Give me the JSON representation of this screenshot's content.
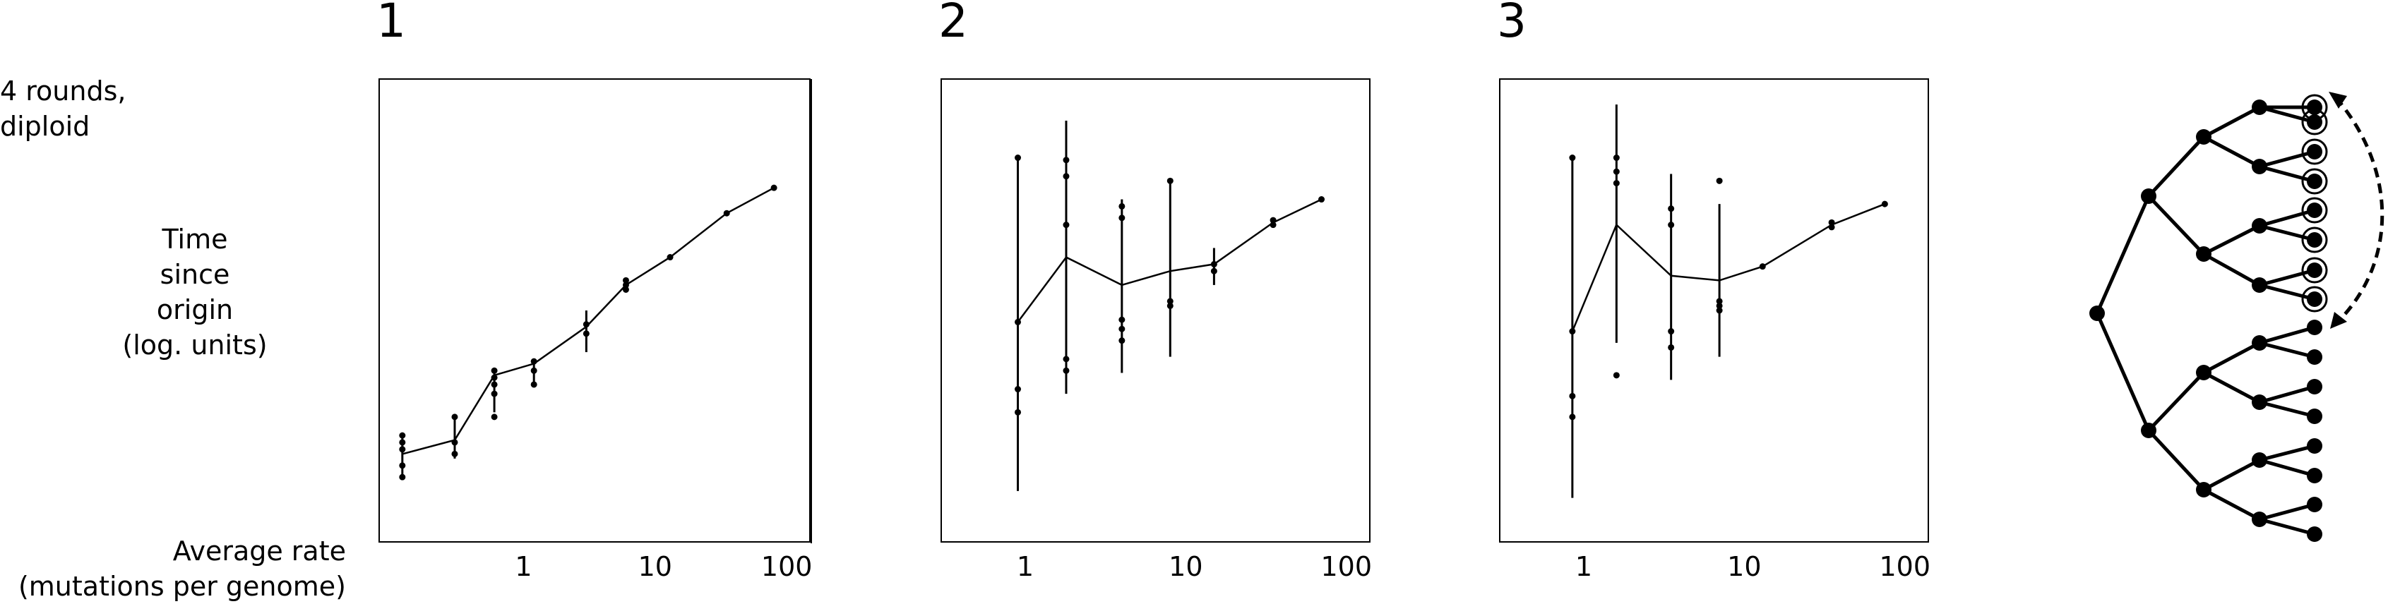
{
  "row_title": [
    "4 rounds,",
    "diploid"
  ],
  "y_axis_label": [
    "Time",
    "since",
    "origin",
    "(log. units)"
  ],
  "x_axis_label": [
    "Average rate",
    "(mutations per genome)"
  ],
  "colors": {
    "ink": "#000000",
    "background": "#ffffff"
  },
  "tree_icon": "binary-genealogy-tree-icon",
  "chart_data": [
    {
      "type": "line",
      "title": "1",
      "x_scale": "log",
      "xlim": [
        0.08,
        150
      ],
      "ylim": [
        0,
        1
      ],
      "x_ticks": [
        1,
        10,
        100
      ],
      "x_tick_labels": [
        "1",
        "10",
        "100"
      ],
      "y_ticks": [],
      "grid": false,
      "line": {
        "x": [
          0.12,
          0.3,
          0.6,
          1.2,
          3,
          6,
          13,
          35,
          80
        ],
        "y": [
          0.19,
          0.22,
          0.36,
          0.385,
          0.465,
          0.555,
          0.615,
          0.71,
          0.765
        ]
      },
      "error_bars": [
        {
          "x": 0.12,
          "low": 0.14,
          "high": 0.235
        },
        {
          "x": 0.3,
          "low": 0.18,
          "high": 0.27
        },
        {
          "x": 0.6,
          "low": 0.28,
          "high": 0.365
        },
        {
          "x": 1.2,
          "low": 0.34,
          "high": 0.395
        },
        {
          "x": 3,
          "low": 0.41,
          "high": 0.5
        },
        {
          "x": 6,
          "low": 0.54,
          "high": 0.565
        }
      ],
      "points": [
        {
          "x": 0.12,
          "y": [
            0.14,
            0.165,
            0.2,
            0.215,
            0.23
          ]
        },
        {
          "x": 0.3,
          "y": [
            0.19,
            0.215,
            0.27
          ]
        },
        {
          "x": 0.6,
          "y": [
            0.27,
            0.32,
            0.34,
            0.355,
            0.37
          ]
        },
        {
          "x": 1.2,
          "y": [
            0.34,
            0.37,
            0.39
          ]
        },
        {
          "x": 3,
          "y": [
            0.45,
            0.47
          ]
        },
        {
          "x": 6,
          "y": [
            0.545,
            0.555,
            0.565
          ]
        },
        {
          "x": 13,
          "y": [
            0.615
          ]
        },
        {
          "x": 35,
          "y": [
            0.71
          ]
        },
        {
          "x": 80,
          "y": [
            0.765
          ]
        }
      ]
    },
    {
      "type": "line",
      "title": "2",
      "x_scale": "log",
      "xlim": [
        0.3,
        140
      ],
      "ylim": [
        0,
        1
      ],
      "x_ticks": [
        1,
        10,
        100
      ],
      "x_tick_labels": [
        "1",
        "10",
        "100"
      ],
      "y_ticks": [],
      "grid": false,
      "line": {
        "x": [
          0.9,
          1.8,
          4,
          8,
          15,
          35,
          70
        ],
        "y": [
          0.475,
          0.615,
          0.555,
          0.585,
          0.6,
          0.69,
          0.74
        ]
      },
      "error_bars": [
        {
          "x": 0.9,
          "low": 0.11,
          "high": 0.83
        },
        {
          "x": 1.8,
          "low": 0.32,
          "high": 0.91
        },
        {
          "x": 4,
          "low": 0.365,
          "high": 0.74
        },
        {
          "x": 8,
          "low": 0.4,
          "high": 0.78
        },
        {
          "x": 15,
          "low": 0.555,
          "high": 0.635
        }
      ],
      "points": [
        {
          "x": 0.9,
          "y": [
            0.28,
            0.33,
            0.475,
            0.83
          ]
        },
        {
          "x": 1.8,
          "y": [
            0.37,
            0.395,
            0.685,
            0.79,
            0.825
          ]
        },
        {
          "x": 4,
          "y": [
            0.435,
            0.46,
            0.48,
            0.7,
            0.725
          ]
        },
        {
          "x": 8,
          "y": [
            0.51,
            0.52,
            0.78
          ]
        },
        {
          "x": 15,
          "y": [
            0.585,
            0.6
          ]
        },
        {
          "x": 35,
          "y": [
            0.685,
            0.695
          ]
        },
        {
          "x": 70,
          "y": [
            0.74
          ]
        }
      ]
    },
    {
      "type": "line",
      "title": "3",
      "x_scale": "log",
      "xlim": [
        0.3,
        140
      ],
      "ylim": [
        0,
        1
      ],
      "x_ticks": [
        1,
        10,
        100
      ],
      "x_tick_labels": [
        "1",
        "10",
        "100"
      ],
      "y_ticks": [],
      "grid": false,
      "line": {
        "x": [
          0.85,
          1.6,
          3.5,
          7,
          13,
          35,
          75
        ],
        "y": [
          0.455,
          0.685,
          0.575,
          0.565,
          0.595,
          0.685,
          0.73
        ]
      },
      "error_bars": [
        {
          "x": 0.85,
          "low": 0.095,
          "high": 0.83
        },
        {
          "x": 1.6,
          "low": 0.43,
          "high": 0.945
        },
        {
          "x": 3.5,
          "low": 0.35,
          "high": 0.795
        },
        {
          "x": 7,
          "low": 0.4,
          "high": 0.73
        }
      ],
      "points": [
        {
          "x": 0.85,
          "y": [
            0.27,
            0.315,
            0.455,
            0.83
          ]
        },
        {
          "x": 1.6,
          "y": [
            0.36,
            0.775,
            0.8,
            0.83
          ]
        },
        {
          "x": 3.5,
          "y": [
            0.42,
            0.455,
            0.685,
            0.72
          ]
        },
        {
          "x": 7,
          "y": [
            0.5,
            0.51,
            0.52,
            0.78
          ]
        },
        {
          "x": 13,
          "y": [
            0.595
          ]
        },
        {
          "x": 35,
          "y": [
            0.68,
            0.69
          ]
        },
        {
          "x": 75,
          "y": [
            0.73
          ]
        }
      ]
    }
  ]
}
